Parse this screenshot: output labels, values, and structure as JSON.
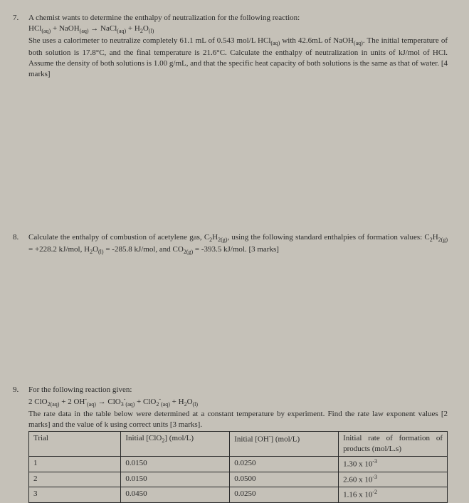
{
  "q7": {
    "number": "7.",
    "line1": "A chemist wants to determine the enthalpy of neutralization for the following reaction:",
    "line2": "HCl(aq) + NaOH(aq) → NaCl(aq) + H2O(l)",
    "line3": "She uses a calorimeter to neutralize completely 61.1 mL of 0.543 mol/L HCl(aq) with 42.6mL of NaOH(aq). The initial temperature of both solution is 17.8°C, and the final temperature is 21.6°C. Calculate the enthalpy of neutralization in units of kJ/mol of HCl. Assume the density of both solutions is 1.00 g/mL, and that the specific heat capacity of both solutions is the same as that of water. [4 marks]"
  },
  "q8": {
    "number": "8.",
    "body": "Calculate the enthalpy of combustion of acetylene gas, C2H2(g), using the following standard enthalpies of formation values: C2H2(g) = +228.2 kJ/mol, H2O(l) = -285.8 kJ/mol, and CO2(g) = -393.5 kJ/mol. [3 marks]"
  },
  "q9": {
    "number": "9.",
    "line1": "For the following reaction given:",
    "line2": "2 ClO2(aq) + 2 OH-(aq) → ClO3-(aq) + ClO2-(aq) + H2O(l)",
    "line3": "The rate data in the table below were determined at a constant temperature by experiment. Find the rate law exponent values [2 marks] and the value of k using correct units [3 marks].",
    "table": {
      "headers": {
        "c1": "Trial",
        "c2": "Initial [ClO2] (mol/L)",
        "c3": "Initial [OH-] (mol/L)",
        "c4": "Initial rate of formation of products (mol/L.s)"
      },
      "rows": [
        {
          "c1": "1",
          "c2": "0.0150",
          "c3": "0.0250",
          "c4": "1.30 x 10-3"
        },
        {
          "c1": "2",
          "c2": "0.0150",
          "c3": "0.0500",
          "c4": "2.60 x 10-3"
        },
        {
          "c1": "3",
          "c2": "0.0450",
          "c3": "0.0250",
          "c4": "1.16 x 10-2"
        }
      ]
    }
  }
}
